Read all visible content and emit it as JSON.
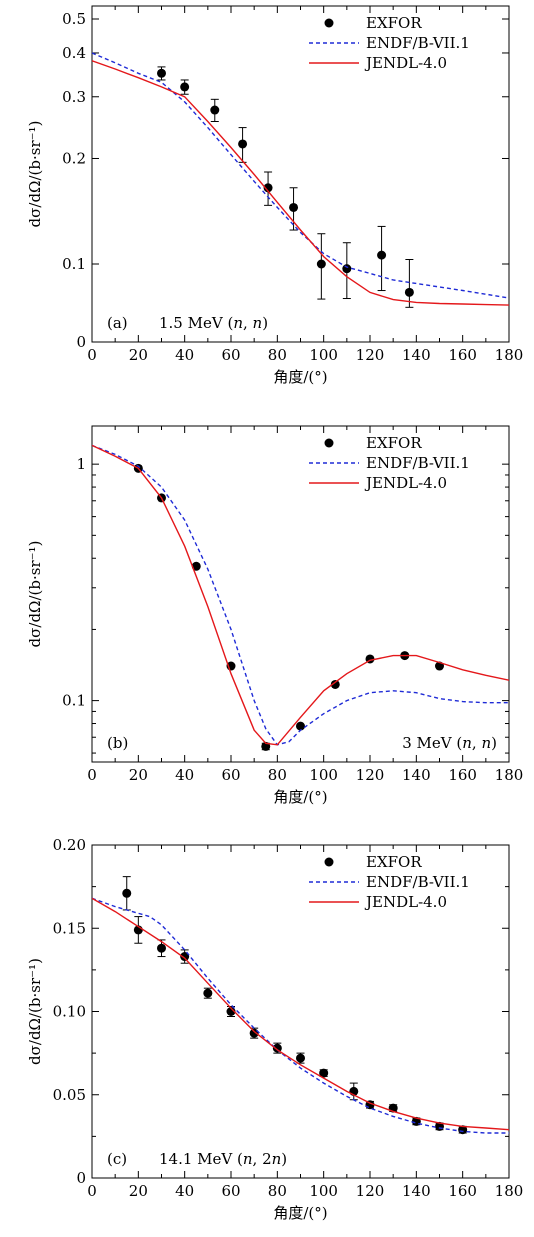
{
  "chart_data": [
    {
      "type": "scatter",
      "panel_label": "(a)",
      "annotation": "1.5 MeV (",
      "annotation_n1": "n",
      "annotation_sep": ", ",
      "annotation_n2": "n",
      "annotation_end": ")",
      "annotation_place": "bottom-left",
      "xlabel": "角度/(°)",
      "ylabel": "dσ/dΩ/(b·sr⁻¹)",
      "xlim": [
        0,
        180
      ],
      "ylim": [
        0,
        0.5
      ],
      "y_scale": "log-like (0 at bottom)",
      "x_ticks": [
        "0",
        "20",
        "40",
        "60",
        "80",
        "100",
        "120",
        "140",
        "160",
        "180"
      ],
      "y_ticks": [
        {
          "v": 0.1,
          "label": "0.1"
        },
        {
          "v": 0.2,
          "label": "0.2"
        },
        {
          "v": 0.3,
          "label": "0.3"
        },
        {
          "v": 0.4,
          "label": "0.4"
        },
        {
          "v": 0.5,
          "label": "0.5"
        }
      ],
      "y_zero_label": "0",
      "legend_place": "top-right",
      "legend": [
        {
          "label": "EXFOR",
          "kind": "marker"
        },
        {
          "label": "ENDF/B-VII.1",
          "kind": "dashed",
          "color": "#1f2bd6"
        },
        {
          "label": "JENDL-4.0",
          "kind": "solid",
          "color": "#e4181b"
        }
      ],
      "series": [
        {
          "name": "EXFOR",
          "kind": "points",
          "x": [
            30,
            40,
            53,
            65,
            76,
            87,
            99,
            110,
            125,
            137
          ],
          "y": [
            0.35,
            0.32,
            0.275,
            0.22,
            0.165,
            0.145,
            0.1,
            0.097,
            0.106,
            0.083
          ],
          "yerr": [
            0.015,
            0.015,
            0.02,
            0.025,
            0.018,
            0.02,
            0.022,
            0.018,
            0.022,
            0.02
          ]
        },
        {
          "name": "ENDF/B-VII.1",
          "kind": "line",
          "color": "#1f2bd6",
          "x": [
            0,
            10,
            20,
            30,
            40,
            50,
            60,
            70,
            80,
            90,
            100,
            110,
            120,
            130,
            140,
            150,
            160,
            170,
            180
          ],
          "y": [
            0.4,
            0.375,
            0.35,
            0.33,
            0.29,
            0.245,
            0.205,
            0.172,
            0.145,
            0.123,
            0.107,
            0.098,
            0.094,
            0.09,
            0.088,
            0.086,
            0.084,
            0.082,
            0.08
          ]
        },
        {
          "name": "JENDL-4.0",
          "kind": "line",
          "color": "#e4181b",
          "x": [
            0,
            10,
            20,
            30,
            40,
            50,
            60,
            70,
            80,
            90,
            100,
            110,
            120,
            130,
            140,
            150,
            160,
            170,
            180
          ],
          "y": [
            0.38,
            0.36,
            0.34,
            0.32,
            0.3,
            0.255,
            0.215,
            0.18,
            0.15,
            0.125,
            0.105,
            0.092,
            0.083,
            0.077,
            0.072,
            0.07,
            0.069,
            0.068,
            0.067
          ]
        }
      ]
    },
    {
      "type": "scatter",
      "panel_label": "(b)",
      "annotation": "3 MeV (",
      "annotation_n1": "n",
      "annotation_sep": ", ",
      "annotation_n2": "n",
      "annotation_end": ")",
      "annotation_place": "bottom-right",
      "xlabel": "角度/(°)",
      "ylabel": "dσ/dΩ/(b·sr⁻¹)",
      "xlim": [
        0,
        180
      ],
      "ylim": [
        0.055,
        1.45
      ],
      "y_scale": "log",
      "x_ticks": [
        "0",
        "20",
        "40",
        "60",
        "80",
        "100",
        "120",
        "140",
        "160",
        "180"
      ],
      "y_ticks": [
        {
          "v": 0.1,
          "label": "0.1"
        },
        {
          "v": 1,
          "label": "1"
        }
      ],
      "legend_place": "top-right",
      "legend": [
        {
          "label": "EXFOR",
          "kind": "marker"
        },
        {
          "label": "ENDF/B-VII.1",
          "kind": "dashed",
          "color": "#1f2bd6"
        },
        {
          "label": "JENDL-4.0",
          "kind": "solid",
          "color": "#e4181b"
        }
      ],
      "series": [
        {
          "name": "EXFOR",
          "kind": "points",
          "x": [
            20,
            30,
            45,
            60,
            75,
            90,
            105,
            120,
            135,
            150
          ],
          "y": [
            0.96,
            0.72,
            0.37,
            0.14,
            0.064,
            0.078,
            0.117,
            0.15,
            0.155,
            0.14
          ],
          "yerr": [
            0,
            0,
            0,
            0,
            0.002,
            0,
            0,
            0,
            0,
            0
          ]
        },
        {
          "name": "ENDF/B-VII.1",
          "kind": "line",
          "color": "#1f2bd6",
          "x": [
            0,
            10,
            20,
            30,
            40,
            50,
            60,
            70,
            75,
            80,
            85,
            90,
            100,
            110,
            120,
            130,
            140,
            150,
            160,
            170,
            180
          ],
          "y": [
            1.2,
            1.1,
            0.98,
            0.8,
            0.58,
            0.36,
            0.2,
            0.1,
            0.076,
            0.065,
            0.067,
            0.075,
            0.088,
            0.1,
            0.108,
            0.11,
            0.108,
            0.102,
            0.099,
            0.098,
            0.098
          ]
        },
        {
          "name": "JENDL-4.0",
          "kind": "line",
          "color": "#e4181b",
          "x": [
            0,
            10,
            20,
            30,
            40,
            50,
            60,
            70,
            75,
            80,
            90,
            100,
            110,
            120,
            130,
            140,
            150,
            160,
            170,
            180
          ],
          "y": [
            1.2,
            1.08,
            0.96,
            0.72,
            0.45,
            0.25,
            0.13,
            0.075,
            0.066,
            0.065,
            0.085,
            0.11,
            0.13,
            0.148,
            0.155,
            0.155,
            0.145,
            0.135,
            0.128,
            0.122
          ]
        }
      ]
    },
    {
      "type": "scatter",
      "panel_label": "(c)",
      "annotation": "14.1 MeV (",
      "annotation_n1": "n",
      "annotation_sep": ", 2",
      "annotation_n2": "n",
      "annotation_end": ")",
      "annotation_place": "bottom-left",
      "xlabel": "角度/(°)",
      "ylabel": "dσ/dΩ/(b·sr⁻¹)",
      "xlim": [
        0,
        180
      ],
      "ylim": [
        0,
        0.2
      ],
      "y_scale": "linear",
      "x_ticks": [
        "0",
        "20",
        "40",
        "60",
        "80",
        "100",
        "120",
        "140",
        "160",
        "180"
      ],
      "y_ticks": [
        {
          "v": 0,
          "label": "0"
        },
        {
          "v": 0.05,
          "label": "0.05"
        },
        {
          "v": 0.1,
          "label": "0.10"
        },
        {
          "v": 0.15,
          "label": "0.15"
        },
        {
          "v": 0.2,
          "label": "0.20"
        }
      ],
      "legend_place": "top-right",
      "legend": [
        {
          "label": "EXFOR",
          "kind": "marker"
        },
        {
          "label": "ENDF/B-VII.1",
          "kind": "dashed",
          "color": "#1f2bd6"
        },
        {
          "label": "JENDL-4.0",
          "kind": "solid",
          "color": "#e4181b"
        }
      ],
      "series": [
        {
          "name": "EXFOR",
          "kind": "points",
          "x": [
            15,
            20,
            30,
            40,
            50,
            60,
            70,
            80,
            90,
            100,
            113,
            120,
            130,
            140,
            150,
            160
          ],
          "y": [
            0.171,
            0.149,
            0.138,
            0.133,
            0.111,
            0.1,
            0.087,
            0.078,
            0.072,
            0.063,
            0.052,
            0.044,
            0.042,
            0.034,
            0.031,
            0.029
          ],
          "yerr": [
            0.01,
            0.008,
            0.005,
            0.004,
            0.003,
            0.003,
            0.003,
            0.003,
            0.003,
            0.002,
            0.005,
            0.002,
            0.002,
            0.002,
            0.002,
            0.002
          ]
        },
        {
          "name": "ENDF/B-VII.1",
          "kind": "line",
          "color": "#1f2bd6",
          "x": [
            0,
            10,
            20,
            25,
            30,
            40,
            50,
            60,
            70,
            80,
            90,
            100,
            110,
            120,
            130,
            140,
            150,
            160,
            170,
            180
          ],
          "y": [
            0.168,
            0.163,
            0.159,
            0.157,
            0.152,
            0.137,
            0.12,
            0.104,
            0.09,
            0.077,
            0.066,
            0.057,
            0.049,
            0.042,
            0.037,
            0.033,
            0.03,
            0.028,
            0.027,
            0.027
          ]
        },
        {
          "name": "JENDL-4.0",
          "kind": "line",
          "color": "#e4181b",
          "x": [
            0,
            10,
            20,
            30,
            40,
            50,
            60,
            70,
            80,
            90,
            100,
            110,
            120,
            130,
            140,
            150,
            160,
            170,
            180
          ],
          "y": [
            0.168,
            0.16,
            0.151,
            0.142,
            0.132,
            0.117,
            0.102,
            0.088,
            0.077,
            0.068,
            0.06,
            0.052,
            0.045,
            0.04,
            0.036,
            0.033,
            0.031,
            0.03,
            0.029
          ]
        }
      ]
    }
  ]
}
